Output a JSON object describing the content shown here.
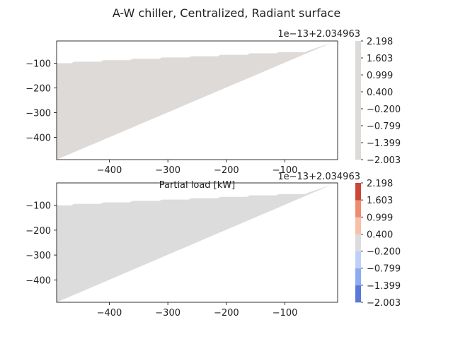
{
  "figure": {
    "title": "A-W chiller, Centralized, Radiant surface"
  },
  "chart_data": [
    {
      "type": "area",
      "title": "",
      "xlabel": "Partial load [kW]",
      "ylabel": "",
      "xlim": [
        -490,
        -10
      ],
      "ylim": [
        -490,
        -10
      ],
      "xticks": [
        -400,
        -300,
        -200,
        -100
      ],
      "xtick_labels": [
        "−400",
        "−300",
        "−200",
        "−100"
      ],
      "yticks": [
        -100,
        -200,
        -300,
        -400
      ],
      "ytick_labels": [
        "−100",
        "−200",
        "−300",
        "−400"
      ],
      "fill_color": "#dddad7",
      "upper_boundary": {
        "x": [
          -490,
          -465,
          -460,
          -415,
          -410,
          -365,
          -360,
          -315,
          -310,
          -265,
          -260,
          -215,
          -210,
          -165,
          -160,
          -115,
          -110,
          -65,
          -60,
          -20
        ],
        "y": [
          -100,
          -100,
          -94,
          -94,
          -88,
          -88,
          -82,
          -82,
          -77,
          -77,
          -72,
          -72,
          -66,
          -66,
          -60,
          -60,
          -55,
          -55,
          -49,
          -17
        ]
      },
      "lower_boundary": {
        "x": [
          -490,
          -20
        ],
        "y": [
          -490,
          -17
        ]
      },
      "colorbar": {
        "offset_label": "1e−13+2.034963",
        "tick_labels": [
          "2.198",
          "1.603",
          "0.999",
          "0.400",
          "−0.200",
          "−0.799",
          "−1.399",
          "−2.003"
        ],
        "levels": [
          -2.003,
          2.198
        ],
        "colors": [
          "#dddad7"
        ]
      },
      "grid": false
    },
    {
      "type": "area",
      "title": "",
      "xlabel": "",
      "ylabel": "",
      "xlim": [
        -490,
        -10
      ],
      "ylim": [
        -490,
        -10
      ],
      "xticks": [
        -400,
        -300,
        -200,
        -100
      ],
      "xtick_labels": [
        "−400",
        "−300",
        "−200",
        "−100"
      ],
      "yticks": [
        -100,
        -200,
        -300,
        -400
      ],
      "ytick_labels": [
        "−100",
        "−200",
        "−300",
        "−400"
      ],
      "fill_color": "#dcdcdc",
      "upper_boundary": {
        "x": [
          -490,
          -465,
          -460,
          -415,
          -410,
          -365,
          -360,
          -315,
          -310,
          -265,
          -260,
          -215,
          -210,
          -165,
          -160,
          -115,
          -110,
          -65,
          -60,
          -20
        ],
        "y": [
          -100,
          -100,
          -94,
          -94,
          -88,
          -88,
          -82,
          -82,
          -77,
          -77,
          -72,
          -72,
          -66,
          -66,
          -60,
          -60,
          -55,
          -55,
          -49,
          -17
        ]
      },
      "lower_boundary": {
        "x": [
          -490,
          -20
        ],
        "y": [
          -490,
          -17
        ]
      },
      "colorbar": {
        "offset_label": "1e−13+2.034963",
        "tick_labels": [
          "2.198",
          "1.603",
          "0.999",
          "0.400",
          "−0.200",
          "−0.799",
          "−1.399",
          "−2.003"
        ],
        "levels": [
          -2.003,
          -1.399,
          -0.799,
          -0.2,
          0.4,
          0.999,
          1.603,
          2.198
        ],
        "colors": [
          "#5a78d8",
          "#8eaaf5",
          "#bfd0f8",
          "#dcdcdc",
          "#f5c1a8",
          "#ef8c6d",
          "#cc4637"
        ]
      },
      "grid": false
    }
  ]
}
